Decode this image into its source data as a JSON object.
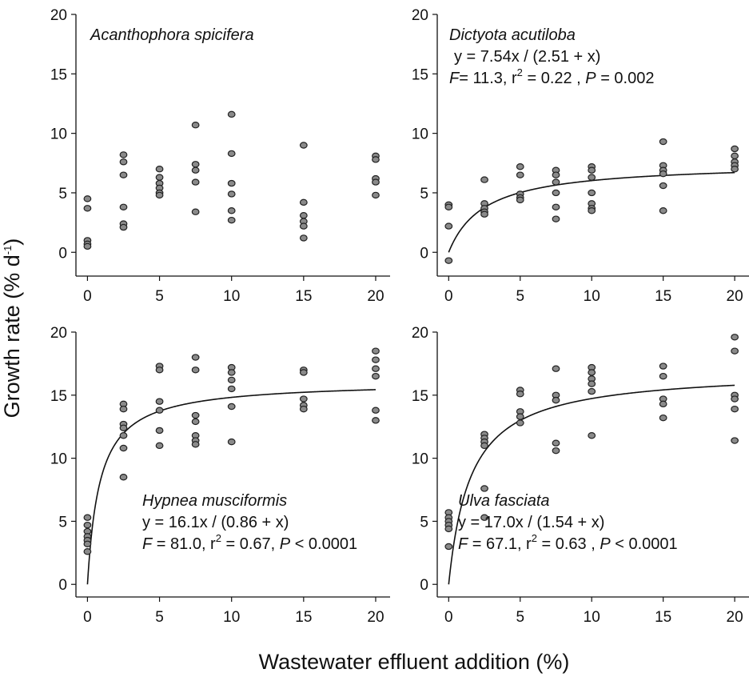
{
  "xlabel": "Wastewater effluent addition (%)",
  "ylabel_main": "Growth rate (% d",
  "ylabel_sup": "-1",
  "ylabel_end": ")",
  "chart_data": [
    {
      "type": "scatter",
      "panel": "top-left",
      "title": "Acanthophora spicifera",
      "xlim": [
        -0.8,
        21
      ],
      "ylim": [
        -2,
        20
      ],
      "xticks": [
        "0",
        "5",
        "10",
        "15",
        "20"
      ],
      "yticks": [
        "0",
        "5",
        "10",
        "15",
        "20"
      ],
      "points": [
        [
          0,
          4.5
        ],
        [
          0,
          3.7
        ],
        [
          0,
          1.0
        ],
        [
          0,
          0.7
        ],
        [
          0,
          0.5
        ],
        [
          2.5,
          8.2
        ],
        [
          2.5,
          7.6
        ],
        [
          2.5,
          6.5
        ],
        [
          2.5,
          3.8
        ],
        [
          2.5,
          2.4
        ],
        [
          2.5,
          2.1
        ],
        [
          5,
          7.0
        ],
        [
          5,
          6.3
        ],
        [
          5,
          5.8
        ],
        [
          5,
          5.4
        ],
        [
          5,
          5.0
        ],
        [
          5,
          4.8
        ],
        [
          7.5,
          10.7
        ],
        [
          7.5,
          7.4
        ],
        [
          7.5,
          6.9
        ],
        [
          7.5,
          5.9
        ],
        [
          7.5,
          3.4
        ],
        [
          10,
          11.6
        ],
        [
          10,
          8.3
        ],
        [
          10,
          5.8
        ],
        [
          10,
          4.9
        ],
        [
          10,
          3.5
        ],
        [
          10,
          2.7
        ],
        [
          15,
          9.0
        ],
        [
          15,
          4.2
        ],
        [
          15,
          3.1
        ],
        [
          15,
          2.6
        ],
        [
          15,
          2.2
        ],
        [
          15,
          1.2
        ],
        [
          20,
          8.1
        ],
        [
          20,
          7.8
        ],
        [
          20,
          6.2
        ],
        [
          20,
          5.9
        ],
        [
          20,
          4.8
        ]
      ]
    },
    {
      "type": "scatter",
      "panel": "top-right",
      "title": "Dictyota acutiloba",
      "equation": "y = 7.54x / (2.51 + x)",
      "stats": {
        "F_label": "F",
        "F": "= 11.3, r",
        "r2": " = 0.22 , ",
        "P_label": "P",
        "P": " = 0.002"
      },
      "fit": {
        "a": 7.54,
        "b": 2.51
      },
      "xlim": [
        -0.8,
        21
      ],
      "ylim": [
        -2,
        20
      ],
      "xticks": [
        "0",
        "5",
        "10",
        "15",
        "20"
      ],
      "yticks": [
        "0",
        "5",
        "10",
        "15",
        "20"
      ],
      "points": [
        [
          0,
          4.0
        ],
        [
          0,
          3.8
        ],
        [
          0,
          2.2
        ],
        [
          0,
          -0.7
        ],
        [
          2.5,
          6.1
        ],
        [
          2.5,
          4.1
        ],
        [
          2.5,
          3.7
        ],
        [
          2.5,
          3.4
        ],
        [
          2.5,
          3.2
        ],
        [
          5,
          7.2
        ],
        [
          5,
          6.5
        ],
        [
          5,
          4.9
        ],
        [
          5,
          4.6
        ],
        [
          5,
          4.4
        ],
        [
          7.5,
          6.9
        ],
        [
          7.5,
          6.5
        ],
        [
          7.5,
          5.9
        ],
        [
          7.5,
          5.0
        ],
        [
          7.5,
          3.8
        ],
        [
          7.5,
          2.8
        ],
        [
          10,
          7.2
        ],
        [
          10,
          6.9
        ],
        [
          10,
          6.3
        ],
        [
          10,
          5.0
        ],
        [
          10,
          4.1
        ],
        [
          10,
          3.7
        ],
        [
          10,
          3.5
        ],
        [
          15,
          9.3
        ],
        [
          15,
          7.3
        ],
        [
          15,
          6.9
        ],
        [
          15,
          6.6
        ],
        [
          15,
          5.6
        ],
        [
          15,
          3.5
        ],
        [
          20,
          8.7
        ],
        [
          20,
          8.1
        ],
        [
          20,
          7.6
        ],
        [
          20,
          7.3
        ],
        [
          20,
          7.0
        ]
      ]
    },
    {
      "type": "scatter",
      "panel": "bottom-left",
      "title": "Hypnea musciformis",
      "equation": "y = 16.1x / (0.86 + x)",
      "stats": {
        "F_label": "F",
        "F": " = 81.0, r",
        "r2": " = 0.67, ",
        "P_label": "P",
        "P": " < 0.0001"
      },
      "fit": {
        "a": 16.1,
        "b": 0.86
      },
      "xlim": [
        -0.8,
        21
      ],
      "ylim": [
        -1,
        20
      ],
      "xticks": [
        "0",
        "5",
        "10",
        "15",
        "20"
      ],
      "yticks": [
        "0",
        "5",
        "10",
        "15",
        "20"
      ],
      "points": [
        [
          0,
          5.3
        ],
        [
          0,
          4.7
        ],
        [
          0,
          4.2
        ],
        [
          0,
          3.8
        ],
        [
          0,
          3.5
        ],
        [
          0,
          3.2
        ],
        [
          0,
          2.6
        ],
        [
          2.5,
          14.3
        ],
        [
          2.5,
          13.9
        ],
        [
          2.5,
          12.7
        ],
        [
          2.5,
          12.4
        ],
        [
          2.5,
          11.8
        ],
        [
          2.5,
          10.8
        ],
        [
          2.5,
          8.5
        ],
        [
          5,
          17.3
        ],
        [
          5,
          17.0
        ],
        [
          5,
          14.5
        ],
        [
          5,
          13.8
        ],
        [
          5,
          12.2
        ],
        [
          5,
          11.0
        ],
        [
          7.5,
          18.0
        ],
        [
          7.5,
          17.0
        ],
        [
          7.5,
          13.4
        ],
        [
          7.5,
          12.9
        ],
        [
          7.5,
          11.8
        ],
        [
          7.5,
          11.4
        ],
        [
          7.5,
          11.1
        ],
        [
          10,
          17.2
        ],
        [
          10,
          16.8
        ],
        [
          10,
          16.2
        ],
        [
          10,
          15.5
        ],
        [
          10,
          14.1
        ],
        [
          10,
          11.3
        ],
        [
          15,
          17.0
        ],
        [
          15,
          16.8
        ],
        [
          15,
          14.7
        ],
        [
          15,
          14.2
        ],
        [
          15,
          13.9
        ],
        [
          20,
          18.5
        ],
        [
          20,
          17.8
        ],
        [
          20,
          17.1
        ],
        [
          20,
          16.5
        ],
        [
          20,
          13.8
        ],
        [
          20,
          13.0
        ]
      ]
    },
    {
      "type": "scatter",
      "panel": "bottom-right",
      "title": "Ulva fasciata",
      "equation": "y = 17.0x / (1.54 + x)",
      "stats": {
        "F_label": "F",
        "F": " = 67.1, r",
        "r2": " = 0.63 , ",
        "P_label": "P",
        "P": " < 0.0001"
      },
      "fit": {
        "a": 17.0,
        "b": 1.54
      },
      "xlim": [
        -0.8,
        21
      ],
      "ylim": [
        -1,
        20
      ],
      "xticks": [
        "0",
        "5",
        "10",
        "15",
        "20"
      ],
      "yticks": [
        "0",
        "5",
        "10",
        "15",
        "20"
      ],
      "points": [
        [
          0,
          5.7
        ],
        [
          0,
          5.3
        ],
        [
          0,
          5.0
        ],
        [
          0,
          4.7
        ],
        [
          0,
          4.4
        ],
        [
          0,
          3.0
        ],
        [
          2.5,
          11.9
        ],
        [
          2.5,
          11.6
        ],
        [
          2.5,
          11.3
        ],
        [
          2.5,
          11.0
        ],
        [
          2.5,
          7.6
        ],
        [
          2.5,
          5.3
        ],
        [
          5,
          15.4
        ],
        [
          5,
          15.1
        ],
        [
          5,
          13.7
        ],
        [
          5,
          13.3
        ],
        [
          5,
          12.8
        ],
        [
          7.5,
          17.1
        ],
        [
          7.5,
          15.0
        ],
        [
          7.5,
          14.6
        ],
        [
          7.5,
          11.2
        ],
        [
          7.5,
          10.6
        ],
        [
          10,
          17.2
        ],
        [
          10,
          16.8
        ],
        [
          10,
          16.3
        ],
        [
          10,
          15.9
        ],
        [
          10,
          15.3
        ],
        [
          10,
          11.8
        ],
        [
          15,
          17.3
        ],
        [
          15,
          16.5
        ],
        [
          15,
          14.7
        ],
        [
          15,
          14.3
        ],
        [
          15,
          13.2
        ],
        [
          20,
          19.6
        ],
        [
          20,
          18.5
        ],
        [
          20,
          15.0
        ],
        [
          20,
          14.7
        ],
        [
          20,
          13.9
        ],
        [
          20,
          11.4
        ]
      ]
    }
  ]
}
